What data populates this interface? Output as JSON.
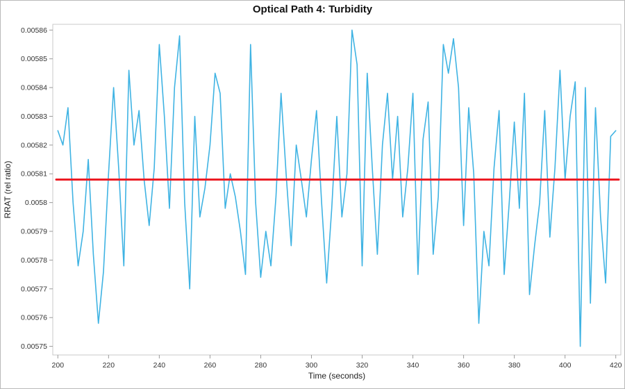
{
  "chart_data": {
    "type": "line",
    "title": "Optical Path 4: Turbidity",
    "xlabel": "Time (seconds)",
    "ylabel": "RRAT (rel ratio)",
    "xlim": [
      198,
      422
    ],
    "ylim": [
      0.005747,
      0.005862
    ],
    "grid": false,
    "legend": "none",
    "x_ticks": [
      200,
      220,
      240,
      260,
      280,
      300,
      320,
      340,
      360,
      380,
      400,
      420
    ],
    "y_ticks": [
      {
        "v": 0.00586,
        "label": "0.00586"
      },
      {
        "v": 0.00585,
        "label": "0.00585"
      },
      {
        "v": 0.00584,
        "label": "0.00584"
      },
      {
        "v": 0.00583,
        "label": "0.00583"
      },
      {
        "v": 0.00582,
        "label": "0.00582"
      },
      {
        "v": 0.00581,
        "label": "0.00581"
      },
      {
        "v": 0.0058,
        "label": "0.0058"
      },
      {
        "v": 0.00579,
        "label": "0.00579"
      },
      {
        "v": 0.00578,
        "label": "0.00578"
      },
      {
        "v": 0.00577,
        "label": "0.00577"
      },
      {
        "v": 0.00576,
        "label": "0.00576"
      },
      {
        "v": 0.00575,
        "label": "0.00575"
      }
    ],
    "series": [
      {
        "name": "RRAT",
        "color": "#3fb3e3",
        "width": 1.6,
        "x": [
          200,
          202,
          204,
          206,
          208,
          210,
          212,
          214,
          216,
          218,
          220,
          222,
          224,
          226,
          228,
          230,
          232,
          234,
          236,
          238,
          240,
          242,
          244,
          246,
          248,
          250,
          252,
          254,
          256,
          258,
          260,
          262,
          264,
          266,
          268,
          270,
          272,
          274,
          276,
          278,
          280,
          282,
          284,
          286,
          288,
          290,
          292,
          294,
          296,
          298,
          300,
          302,
          304,
          306,
          308,
          310,
          312,
          314,
          316,
          318,
          320,
          322,
          324,
          326,
          328,
          330,
          332,
          334,
          336,
          338,
          340,
          342,
          344,
          346,
          348,
          350,
          352,
          354,
          356,
          358,
          360,
          362,
          364,
          366,
          368,
          370,
          372,
          374,
          376,
          378,
          380,
          382,
          384,
          386,
          388,
          390,
          392,
          394,
          396,
          398,
          400,
          402,
          404,
          406,
          408,
          410,
          412,
          414,
          416,
          418,
          420
        ],
        "y": [
          0.005825,
          0.00582,
          0.005833,
          0.0058,
          0.005778,
          0.00579,
          0.005815,
          0.005782,
          0.005758,
          0.005776,
          0.00581,
          0.00584,
          0.005812,
          0.005778,
          0.005846,
          0.00582,
          0.005832,
          0.005808,
          0.005792,
          0.005812,
          0.005855,
          0.00583,
          0.005798,
          0.00584,
          0.005858,
          0.0058,
          0.00577,
          0.00583,
          0.005795,
          0.005805,
          0.00582,
          0.005845,
          0.005838,
          0.005798,
          0.00581,
          0.005802,
          0.00579,
          0.005775,
          0.005855,
          0.0058,
          0.005774,
          0.00579,
          0.005778,
          0.005802,
          0.005838,
          0.00581,
          0.005785,
          0.00582,
          0.005808,
          0.005795,
          0.005815,
          0.005832,
          0.0058,
          0.005772,
          0.005798,
          0.00583,
          0.005795,
          0.00581,
          0.00586,
          0.005848,
          0.005778,
          0.005845,
          0.005812,
          0.005782,
          0.00582,
          0.005838,
          0.005808,
          0.00583,
          0.005795,
          0.005812,
          0.005838,
          0.005775,
          0.005822,
          0.005835,
          0.005782,
          0.005802,
          0.005855,
          0.005845,
          0.005857,
          0.00584,
          0.005792,
          0.005833,
          0.00581,
          0.005758,
          0.00579,
          0.005778,
          0.005812,
          0.005832,
          0.005775,
          0.0058,
          0.005828,
          0.005798,
          0.005838,
          0.005768,
          0.005785,
          0.0058,
          0.005832,
          0.005788,
          0.005812,
          0.005846,
          0.005808,
          0.00583,
          0.005842,
          0.00575,
          0.00584,
          0.005765,
          0.005833,
          0.005795,
          0.005772,
          0.005823,
          0.005825
        ]
      }
    ],
    "reference_line": {
      "value": 0.005808,
      "color": "#ec1c24",
      "width": 3
    }
  }
}
